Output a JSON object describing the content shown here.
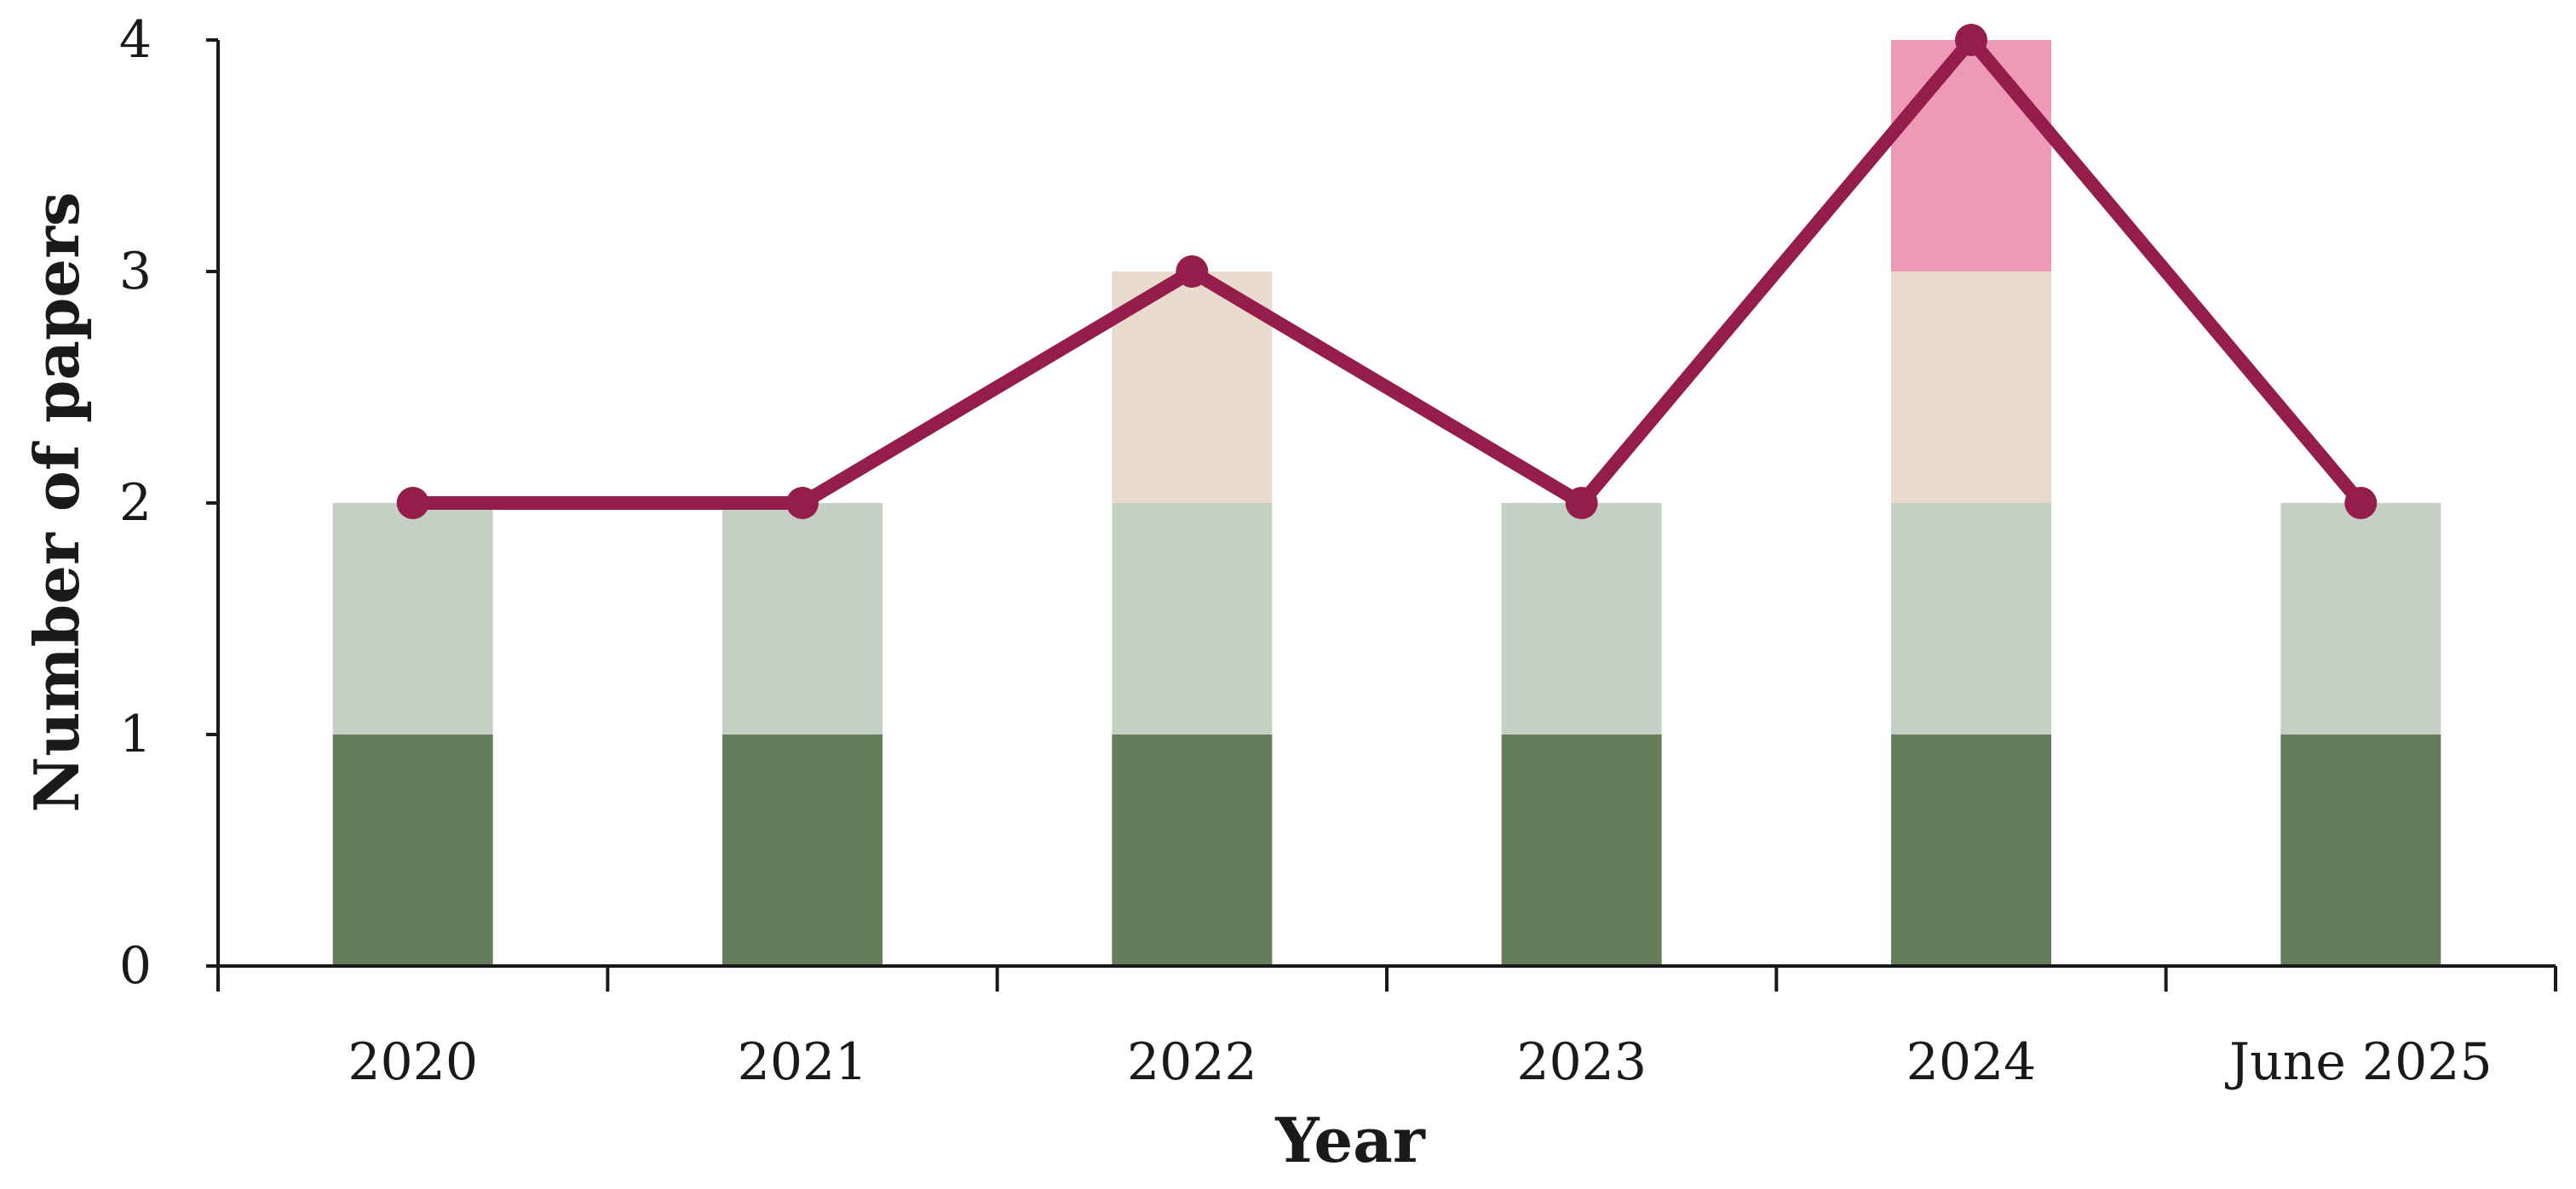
{
  "chart_data": {
    "type": "bar",
    "stacked": true,
    "categories": [
      "2020",
      "2021",
      "2022",
      "2023",
      "2024",
      "June 2025"
    ],
    "series": [
      {
        "values": [
          1,
          1,
          1,
          1,
          1,
          1
        ],
        "color": "#647d5b"
      },
      {
        "values": [
          1,
          1,
          1,
          1,
          1,
          1
        ],
        "color": "#c4d0c3"
      },
      {
        "values": [
          0,
          0,
          1,
          0,
          1,
          0
        ],
        "color": "#ead9cd"
      },
      {
        "values": [
          0,
          0,
          0,
          0,
          1,
          0
        ],
        "color": "#ee99b6"
      }
    ],
    "line_series": {
      "type": "line",
      "values": [
        2,
        2,
        3,
        2,
        4,
        2
      ],
      "color": "#951d4b"
    },
    "xlabel": "Year",
    "ylabel": "Number of papers",
    "ylim": [
      0,
      4
    ],
    "yticks": [
      "0",
      "1",
      "2",
      "3",
      "4"
    ],
    "grid": false,
    "legend": "none"
  }
}
